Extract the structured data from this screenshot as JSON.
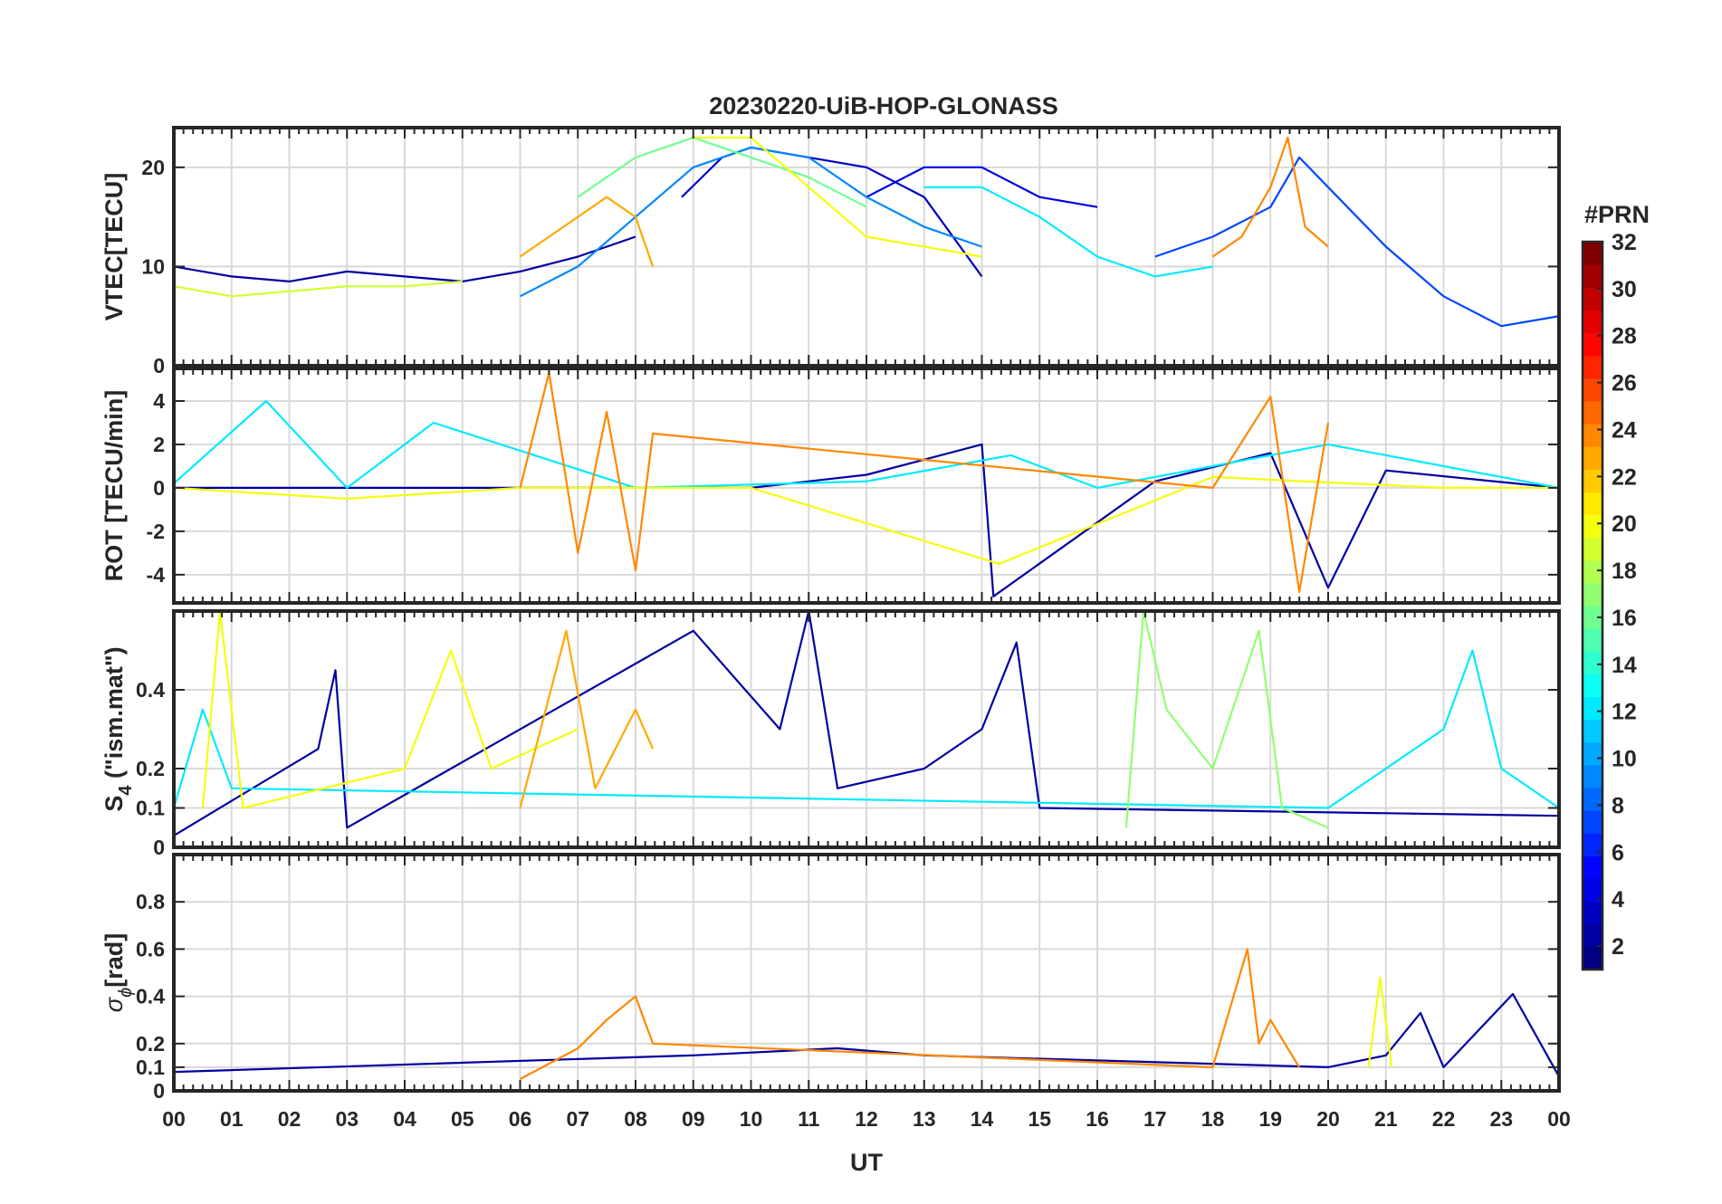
{
  "figure": {
    "title": "20230220-UiB-HOP-GLONASS",
    "xlabel": "UT",
    "x_tick_labels": [
      "00",
      "01",
      "02",
      "03",
      "04",
      "05",
      "06",
      "07",
      "08",
      "09",
      "10",
      "11",
      "12",
      "13",
      "14",
      "15",
      "16",
      "17",
      "18",
      "19",
      "20",
      "21",
      "22",
      "23",
      "00"
    ],
    "colorbar": {
      "title": "#PRN",
      "ticks": [
        "2",
        "4",
        "6",
        "8",
        "10",
        "12",
        "14",
        "16",
        "18",
        "20",
        "22",
        "24",
        "26",
        "28",
        "30",
        "32"
      ],
      "range": [
        1,
        32
      ],
      "colormap": "jet"
    },
    "panels": {
      "vtec": {
        "ylabel": "VTEC[TECU]",
        "ylim": [
          0,
          24
        ],
        "ticks": [
          "0",
          "10",
          "20"
        ]
      },
      "rot": {
        "ylabel": "ROT [TECU/min]",
        "ylim": [
          -5.3,
          5.5
        ],
        "ticks": [
          "-4",
          "-2",
          "0",
          "2",
          "4"
        ]
      },
      "s4": {
        "ylabel_main": "S",
        "ylabel_sub": "4",
        "ylabel_rest": " (\"ism.mat\")",
        "ylim": [
          0,
          0.6
        ],
        "ticks": [
          "0",
          "0.1",
          "0.2",
          "0.4"
        ]
      },
      "sigma": {
        "ylabel_main": "σ",
        "ylabel_sub": "ϕ",
        "ylabel_rest": "[rad]",
        "ylim": [
          0,
          1
        ],
        "ticks": [
          "0",
          "0.1",
          "0.2",
          "0.4",
          "0.6",
          "0.8"
        ]
      }
    }
  },
  "chart_data": [
    {
      "type": "line",
      "title": "20230220-UiB-HOP-GLONASS",
      "ylabel": "VTEC[TECU]",
      "xlabel": "UT",
      "xlim": [
        0,
        24
      ],
      "ylim": [
        0,
        24
      ],
      "grid": true,
      "series": [
        {
          "prn": 2,
          "x": [
            0,
            1,
            2,
            3,
            4,
            5,
            6,
            7,
            8
          ],
          "values": [
            10,
            9,
            8.5,
            9.5,
            9,
            8.5,
            9.5,
            11,
            13
          ]
        },
        {
          "prn": 3,
          "x": [
            8.8,
            9.5,
            10,
            11,
            12,
            13,
            14
          ],
          "values": [
            17,
            21,
            22,
            21,
            20,
            17,
            9
          ]
        },
        {
          "prn": 4,
          "x": [
            12,
            13,
            14,
            15,
            16
          ],
          "values": [
            17,
            20,
            20,
            17,
            16
          ]
        },
        {
          "prn": 7,
          "x": [
            17,
            18,
            19,
            19.5,
            20,
            21,
            22,
            23,
            24
          ],
          "values": [
            11,
            13,
            16,
            21,
            18,
            12,
            7,
            4,
            5
          ]
        },
        {
          "prn": 9,
          "x": [
            6,
            7,
            8,
            9,
            10,
            11,
            12,
            13,
            14
          ],
          "values": [
            7,
            10,
            15,
            20,
            22,
            21,
            17,
            14,
            12
          ]
        },
        {
          "prn": 12,
          "x": [
            13,
            14,
            15,
            16,
            17,
            18
          ],
          "values": [
            18,
            18,
            15,
            11,
            9,
            10
          ]
        },
        {
          "prn": 16,
          "x": [
            7,
            8,
            8.5,
            9,
            10,
            11,
            12
          ],
          "values": [
            17,
            21,
            22,
            23,
            21,
            19,
            16
          ]
        },
        {
          "prn": 19,
          "x": [
            0,
            1,
            2,
            3,
            4,
            5
          ],
          "values": [
            8,
            7,
            7.5,
            8,
            8,
            8.5
          ]
        },
        {
          "prn": 20,
          "x": [
            9,
            10,
            11,
            12,
            13,
            14
          ],
          "values": [
            23,
            23,
            18,
            13,
            12,
            11
          ]
        },
        {
          "prn": 23,
          "x": [
            6,
            7,
            7.5,
            8,
            8.3
          ],
          "values": [
            11,
            15,
            17,
            15,
            10
          ]
        },
        {
          "prn": 24,
          "x": [
            18,
            18.5,
            19,
            19.3,
            19.6,
            20
          ],
          "values": [
            11,
            13,
            18,
            23,
            14,
            12
          ]
        }
      ]
    },
    {
      "type": "line",
      "ylabel": "ROT [TECU/min]",
      "xlim": [
        0,
        24
      ],
      "ylim": [
        -5.3,
        5.5
      ],
      "grid": true,
      "series": [
        {
          "prn": 2,
          "x": [
            0,
            6,
            10,
            12,
            14,
            14.2,
            17,
            19,
            20,
            21,
            24
          ],
          "values": [
            0,
            0,
            0,
            0.6,
            2,
            -5,
            0.3,
            1.6,
            -4.6,
            0.8,
            0
          ]
        },
        {
          "prn": 12,
          "x": [
            0,
            1.6,
            3,
            4.5,
            8,
            12,
            14.5,
            16,
            20,
            24
          ],
          "values": [
            0.2,
            4,
            0,
            3,
            0,
            0.3,
            1.5,
            0,
            2,
            0
          ]
        },
        {
          "prn": 20,
          "x": [
            0,
            3,
            6,
            10,
            14.3,
            18,
            22,
            24
          ],
          "values": [
            0,
            -0.5,
            0,
            0,
            -3.5,
            0.5,
            0,
            0
          ]
        },
        {
          "prn": 24,
          "x": [
            6,
            6.5,
            7,
            7.5,
            8,
            8.3,
            18,
            19,
            19.5,
            20
          ],
          "values": [
            0,
            5.3,
            -3,
            3.5,
            -3.8,
            2.5,
            0,
            4.2,
            -4.8,
            3
          ]
        }
      ]
    },
    {
      "type": "line",
      "ylabel": "S4 (\"ism.mat\")",
      "xlim": [
        0,
        24
      ],
      "ylim": [
        0,
        0.6
      ],
      "grid": true,
      "series": [
        {
          "prn": 2,
          "x": [
            0,
            2.5,
            2.8,
            3,
            9,
            10.5,
            11,
            11.5,
            13,
            14,
            14.6,
            15,
            24
          ],
          "values": [
            0.03,
            0.25,
            0.45,
            0.05,
            0.55,
            0.3,
            0.6,
            0.15,
            0.2,
            0.3,
            0.52,
            0.1,
            0.08
          ]
        },
        {
          "prn": 12,
          "x": [
            0,
            0.5,
            1,
            20,
            22,
            22.5,
            23,
            24
          ],
          "values": [
            0.1,
            0.35,
            0.15,
            0.1,
            0.3,
            0.5,
            0.2,
            0.1
          ]
        },
        {
          "prn": 17,
          "x": [
            16.5,
            16.8,
            17.2,
            18,
            18.8,
            19.2,
            20
          ],
          "values": [
            0.05,
            0.6,
            0.35,
            0.2,
            0.55,
            0.1,
            0.05
          ]
        },
        {
          "prn": 20,
          "x": [
            0.5,
            0.8,
            1.2,
            4,
            4.8,
            5.5,
            7
          ],
          "values": [
            0.1,
            0.6,
            0.1,
            0.2,
            0.5,
            0.2,
            0.3
          ]
        },
        {
          "prn": 23,
          "x": [
            6,
            6.8,
            7.3,
            8,
            8.3
          ],
          "values": [
            0.1,
            0.55,
            0.15,
            0.35,
            0.25
          ]
        }
      ]
    },
    {
      "type": "line",
      "ylabel": "σϕ[rad]",
      "xlim": [
        0,
        24
      ],
      "ylim": [
        0,
        1
      ],
      "grid": true,
      "series": [
        {
          "prn": 2,
          "x": [
            0,
            9,
            11.5,
            13,
            20,
            21,
            21.6,
            22,
            23.2,
            24
          ],
          "values": [
            0.08,
            0.15,
            0.18,
            0.15,
            0.1,
            0.15,
            0.33,
            0.1,
            0.41,
            0.06
          ]
        },
        {
          "prn": 20,
          "x": [
            20.7,
            20.9,
            21.1
          ],
          "values": [
            0.1,
            0.48,
            0.1
          ]
        },
        {
          "prn": 24,
          "x": [
            6,
            7,
            7.5,
            8,
            8.3,
            18,
            18.6,
            18.8,
            19,
            19.5
          ],
          "values": [
            0.05,
            0.18,
            0.3,
            0.4,
            0.2,
            0.1,
            0.6,
            0.2,
            0.3,
            0.1
          ]
        }
      ]
    }
  ]
}
